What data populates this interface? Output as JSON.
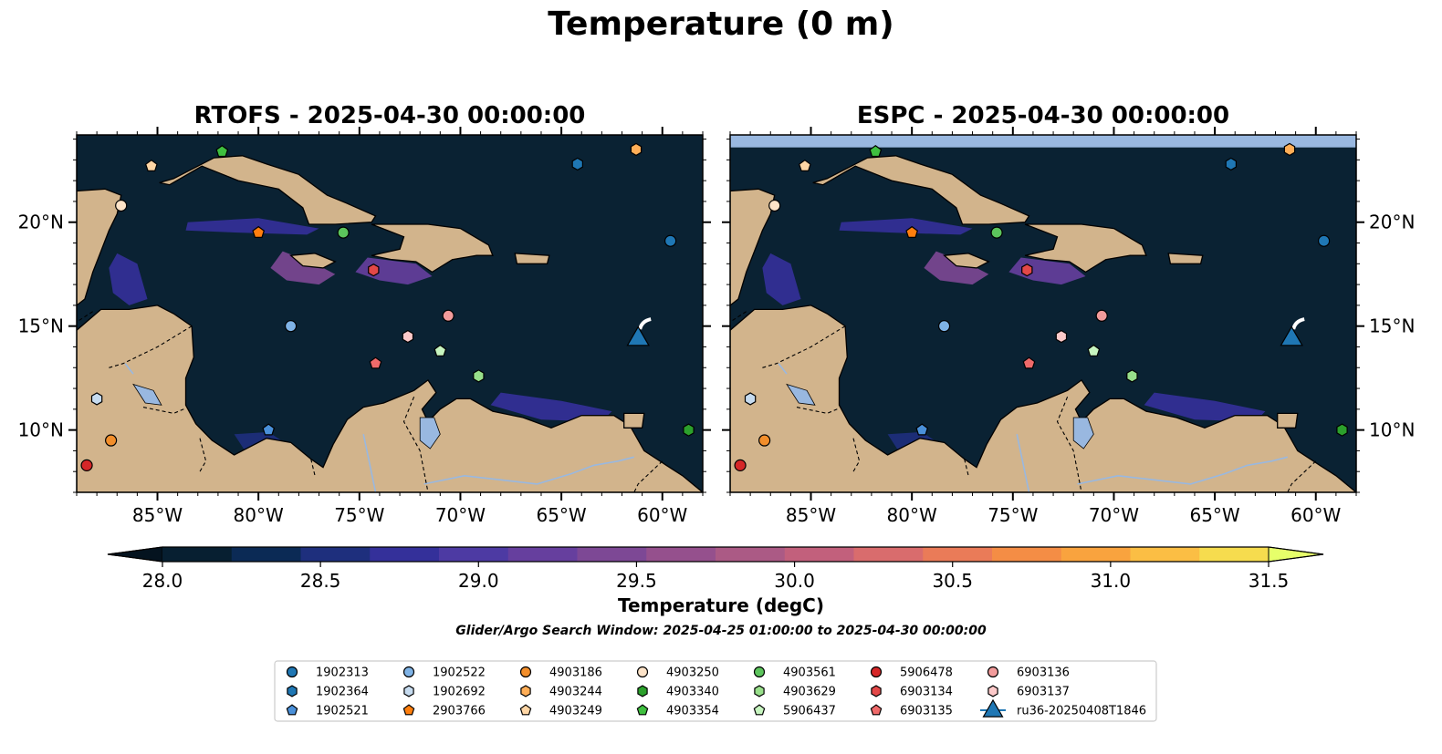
{
  "figure": {
    "title": "Temperature (0 m)",
    "search_window_text": "Glider/Argo Search Window: 2025-04-25 01:00:00 to 2025-04-30 00:00:00"
  },
  "panels": [
    {
      "model": "RTOFS",
      "title": "RTOFS - 2025-04-30 00:00:00"
    },
    {
      "model": "ESPC",
      "title": "ESPC - 2025-04-30 00:00:00"
    }
  ],
  "map": {
    "lon_range": [
      -89,
      -58
    ],
    "lat_range": [
      7,
      24.2
    ],
    "lon_ticks": [
      "85°W",
      "80°W",
      "75°W",
      "70°W",
      "65°W",
      "60°W"
    ],
    "lat_ticks": [
      "20°N",
      "15°N",
      "10°N"
    ],
    "ocean_color": "#0a2233",
    "land_color": "#d2b48c",
    "lake_color": "#99b8e0"
  },
  "colorbar": {
    "label": "Temperature (degC)",
    "min": 28.0,
    "max": 31.5,
    "ticks": [
      "28.0",
      "28.5",
      "29.0",
      "29.5",
      "30.0",
      "30.5",
      "31.0",
      "31.5"
    ],
    "colors": [
      "#071f31",
      "#0b2a55",
      "#1e2f7d",
      "#34309a",
      "#4d3aa3",
      "#663f9e",
      "#7d4895",
      "#95508d",
      "#ab5a85",
      "#c2607c",
      "#d96c6d",
      "#ea7b58",
      "#f48d45",
      "#f9a33e",
      "#fbbe44",
      "#f6dc4e"
    ],
    "extend_min_color": "#04131f",
    "extend_max_color": "#e6ff6a"
  },
  "legend": {
    "entries": [
      {
        "label": "1902313",
        "shape": "circle",
        "color": "#1f77b4",
        "lon": -59.6,
        "lat": 19.1
      },
      {
        "label": "1902364",
        "shape": "hexagon",
        "color": "#1f77b4",
        "lon": -64.2,
        "lat": 22.8
      },
      {
        "label": "1902521",
        "shape": "pentagon",
        "color": "#4a90d9",
        "lon": -79.5,
        "lat": 10.0
      },
      {
        "label": "1902522",
        "shape": "circle",
        "color": "#7fb3e6",
        "lon": -78.4,
        "lat": 15.0
      },
      {
        "label": "1902692",
        "shape": "hexagon",
        "color": "#c6dbef",
        "lon": -88.0,
        "lat": 11.5
      },
      {
        "label": "2903766",
        "shape": "pentagon",
        "color": "#ff7f0e",
        "lon": -80.0,
        "lat": 19.5
      },
      {
        "label": "4903186",
        "shape": "circle",
        "color": "#f28e2b",
        "lon": -87.3,
        "lat": 9.5
      },
      {
        "label": "4903244",
        "shape": "hexagon",
        "color": "#ffae57",
        "lon": -61.3,
        "lat": 23.5
      },
      {
        "label": "4903249",
        "shape": "pentagon",
        "color": "#ffd6a5",
        "lon": -85.3,
        "lat": 22.7
      },
      {
        "label": "4903250",
        "shape": "circle",
        "color": "#fde3c8",
        "lon": -86.8,
        "lat": 20.8
      },
      {
        "label": "4903340",
        "shape": "hexagon",
        "color": "#2ca02c",
        "lon": -58.7,
        "lat": 10.0
      },
      {
        "label": "4903354",
        "shape": "pentagon",
        "color": "#3fbf3f",
        "lon": -81.8,
        "lat": 23.4
      },
      {
        "label": "4903561",
        "shape": "circle",
        "color": "#5cc45c",
        "lon": -75.8,
        "lat": 19.5
      },
      {
        "label": "4903629",
        "shape": "hexagon",
        "color": "#98df8a",
        "lon": -69.1,
        "lat": 12.6
      },
      {
        "label": "5906437",
        "shape": "pentagon",
        "color": "#c7f5c0",
        "lon": -71.0,
        "lat": 13.8
      },
      {
        "label": "5906478",
        "shape": "circle",
        "color": "#d62728",
        "lon": -88.5,
        "lat": 8.3
      },
      {
        "label": "6903134",
        "shape": "hexagon",
        "color": "#e34848",
        "lon": -74.3,
        "lat": 17.7
      },
      {
        "label": "6903135",
        "shape": "pentagon",
        "color": "#f06a6a",
        "lon": -74.2,
        "lat": 13.2
      },
      {
        "label": "6903136",
        "shape": "circle",
        "color": "#f29b9b",
        "lon": -70.6,
        "lat": 15.5
      },
      {
        "label": "6903137",
        "shape": "hexagon",
        "color": "#fcc9c9",
        "lon": -72.6,
        "lat": 14.5
      },
      {
        "label": "ru36-20250408T1846",
        "shape": "triangle",
        "color": "#1f77b4",
        "lon": -61.2,
        "lat": 14.5
      }
    ]
  }
}
